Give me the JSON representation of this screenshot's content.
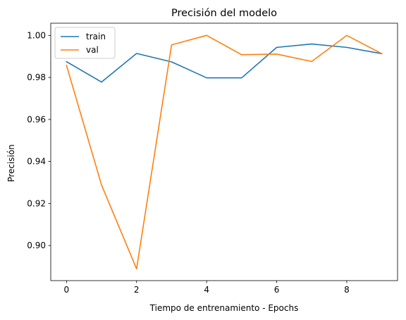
{
  "chart_data": {
    "type": "line",
    "title": "Precisión del modelo",
    "xlabel": "Tiempo de entrenamiento - Epochs",
    "ylabel": "Precisión",
    "xlim": [
      -0.45,
      9.45
    ],
    "ylim": [
      0.8833,
      1.0058
    ],
    "xticks": [
      0,
      2,
      4,
      6,
      8
    ],
    "xtick_labels": [
      "0",
      "2",
      "4",
      "6",
      "8"
    ],
    "yticks": [
      0.9,
      0.92,
      0.94,
      0.96,
      0.98,
      1.0
    ],
    "ytick_labels": [
      "0.90",
      "0.92",
      "0.94",
      "0.96",
      "0.98",
      "1.00"
    ],
    "grid": false,
    "legend_position": "top-left",
    "x": [
      0,
      1,
      2,
      3,
      4,
      5,
      6,
      7,
      8,
      9
    ],
    "series": [
      {
        "name": "train",
        "color": "#1f77b4",
        "values": [
          0.9875,
          0.9778,
          0.9914,
          0.9874,
          0.9798,
          0.9798,
          0.9943,
          0.9959,
          0.9943,
          0.9913
        ]
      },
      {
        "name": "val",
        "color": "#ff7f0e",
        "values": [
          0.9857,
          0.9288,
          0.8889,
          0.9955,
          1.0,
          0.9908,
          0.9911,
          0.9876,
          1.0,
          0.9913
        ]
      }
    ]
  }
}
